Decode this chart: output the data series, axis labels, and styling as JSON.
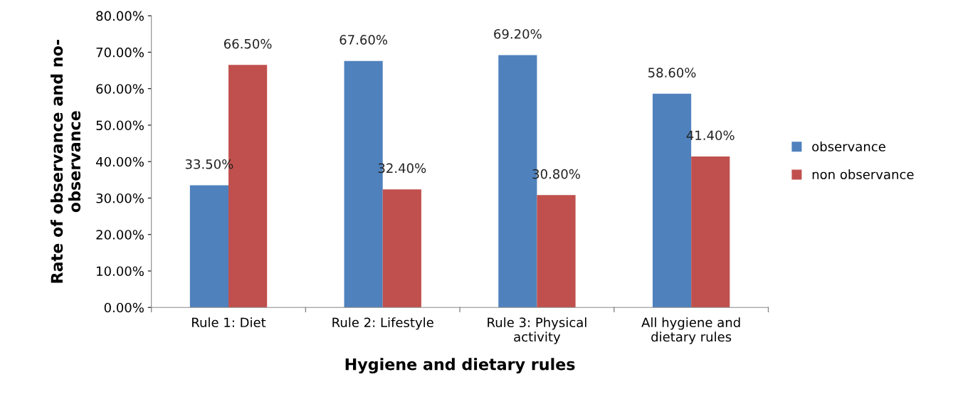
{
  "chart_data": {
    "type": "bar",
    "xlabel": "Hygiene and dietary rules",
    "ylabel": "Rate of observance and no-\nobservance",
    "categories": [
      "Rule 1: Diet",
      "Rule 2: Lifestyle",
      "Rule 3: Physical\nactivity",
      "All hygiene and\ndietary rules"
    ],
    "series": [
      {
        "name": "observance",
        "color": "#4f81bd",
        "values": [
          33.5,
          67.6,
          69.2,
          58.6
        ],
        "value_labels": [
          "33.50%",
          "67.60%",
          "69.20%",
          "58.60%"
        ]
      },
      {
        "name": "non observance",
        "color": "#c0504d",
        "values": [
          66.5,
          32.4,
          30.8,
          41.4
        ],
        "value_labels": [
          "66.50%",
          "32.40%",
          "30.80%",
          "41.40%"
        ]
      }
    ],
    "ylim": [
      0,
      80
    ],
    "yticks": [
      {
        "value": 0,
        "label": "0.00%"
      },
      {
        "value": 10,
        "label": "10.00%"
      },
      {
        "value": 20,
        "label": "20.00%"
      },
      {
        "value": 30,
        "label": "30.00%"
      },
      {
        "value": 40,
        "label": "40.00%"
      },
      {
        "value": 50,
        "label": "50.00%"
      },
      {
        "value": 60,
        "label": "60.00%"
      },
      {
        "value": 70,
        "label": "70.00%"
      },
      {
        "value": 80,
        "label": "80.00%"
      }
    ],
    "grid": false,
    "legend": "right"
  }
}
